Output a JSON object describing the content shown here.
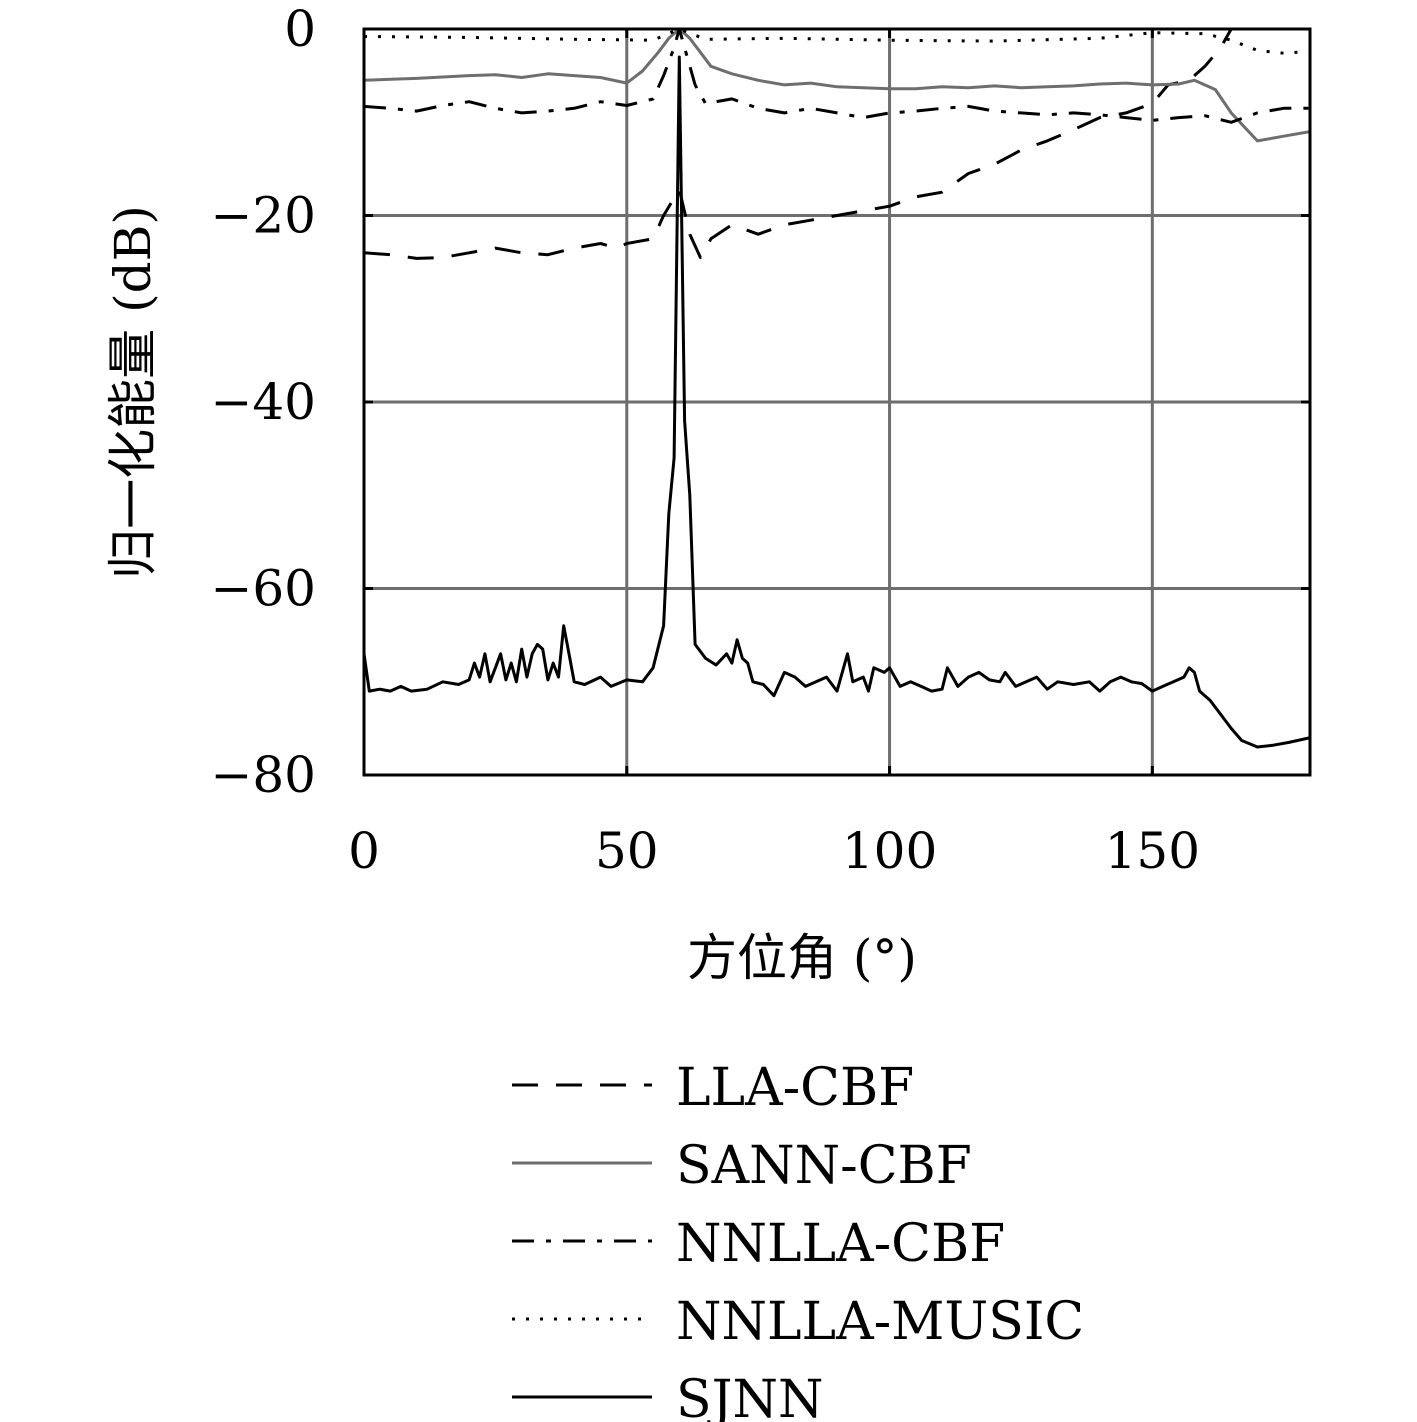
{
  "chart_data": {
    "type": "line",
    "title": "",
    "xlabel": "方位角 (°)",
    "ylabel": "归一化能量 (dB)",
    "xlim": [
      0,
      180
    ],
    "ylim": [
      -80,
      0
    ],
    "x_ticks": [
      "0",
      "50",
      "100",
      "150"
    ],
    "y_ticks": [
      "0",
      "−20",
      "−40",
      "−60",
      "−80"
    ],
    "grid": true,
    "legend_position": "below-plot",
    "series": [
      {
        "name": "LLA-CBF",
        "color": "#000000",
        "dash": "dashed",
        "points": [
          [
            0,
            -24
          ],
          [
            5,
            -24.2
          ],
          [
            10,
            -24.6
          ],
          [
            15,
            -24.5
          ],
          [
            20,
            -24
          ],
          [
            25,
            -23.5
          ],
          [
            30,
            -24
          ],
          [
            35,
            -24.2
          ],
          [
            40,
            -23.5
          ],
          [
            45,
            -23
          ],
          [
            48,
            -23.5
          ],
          [
            50,
            -23
          ],
          [
            55,
            -22.5
          ],
          [
            57,
            -20
          ],
          [
            60,
            -17.2
          ],
          [
            62,
            -22
          ],
          [
            64,
            -24.5
          ],
          [
            66,
            -22.5
          ],
          [
            70,
            -21
          ],
          [
            75,
            -22
          ],
          [
            80,
            -21
          ],
          [
            85,
            -20.5
          ],
          [
            90,
            -20
          ],
          [
            95,
            -19.5
          ],
          [
            100,
            -19
          ],
          [
            105,
            -18
          ],
          [
            110,
            -17.5
          ],
          [
            115,
            -15.5
          ],
          [
            120,
            -14.5
          ],
          [
            125,
            -13
          ],
          [
            130,
            -12
          ],
          [
            135,
            -10.8
          ],
          [
            140,
            -9.5
          ],
          [
            145,
            -9
          ],
          [
            150,
            -8
          ],
          [
            153,
            -6
          ],
          [
            157,
            -5.5
          ],
          [
            160,
            -4
          ],
          [
            163,
            -2
          ],
          [
            165,
            0
          ]
        ]
      },
      {
        "name": "SANN-CBF",
        "color": "#6e6e6e",
        "dash": "solid",
        "points": [
          [
            0,
            -5.5
          ],
          [
            10,
            -5.3
          ],
          [
            20,
            -5
          ],
          [
            25,
            -4.9
          ],
          [
            30,
            -5.2
          ],
          [
            35,
            -4.8
          ],
          [
            40,
            -5
          ],
          [
            45,
            -5.2
          ],
          [
            50,
            -5.8
          ],
          [
            53,
            -4.5
          ],
          [
            56,
            -2.5
          ],
          [
            58,
            -1
          ],
          [
            60,
            0
          ],
          [
            62,
            -1
          ],
          [
            64,
            -2.5
          ],
          [
            66,
            -4
          ],
          [
            70,
            -4.8
          ],
          [
            75,
            -5.5
          ],
          [
            80,
            -6
          ],
          [
            85,
            -5.8
          ],
          [
            90,
            -6.2
          ],
          [
            95,
            -6.3
          ],
          [
            100,
            -6.4
          ],
          [
            105,
            -6.4
          ],
          [
            110,
            -6.2
          ],
          [
            115,
            -6.3
          ],
          [
            120,
            -6.1
          ],
          [
            125,
            -6.3
          ],
          [
            130,
            -6.2
          ],
          [
            135,
            -6.1
          ],
          [
            140,
            -5.9
          ],
          [
            145,
            -5.8
          ],
          [
            150,
            -6
          ],
          [
            155,
            -5.9
          ],
          [
            158,
            -5.5
          ],
          [
            162,
            -6.5
          ],
          [
            165,
            -9
          ],
          [
            170,
            -12
          ],
          [
            175,
            -11.5
          ],
          [
            180,
            -11
          ]
        ]
      },
      {
        "name": "NNLLA-CBF",
        "color": "#000000",
        "dash": "dashdot",
        "points": [
          [
            0,
            -8.3
          ],
          [
            5,
            -8.5
          ],
          [
            10,
            -8.8
          ],
          [
            15,
            -8.2
          ],
          [
            20,
            -7.8
          ],
          [
            25,
            -8.5
          ],
          [
            30,
            -9
          ],
          [
            35,
            -8.8
          ],
          [
            40,
            -8.5
          ],
          [
            45,
            -7.8
          ],
          [
            50,
            -8.2
          ],
          [
            55,
            -7.5
          ],
          [
            57,
            -5
          ],
          [
            59,
            -2
          ],
          [
            60,
            0
          ],
          [
            61,
            -2
          ],
          [
            63,
            -6
          ],
          [
            65,
            -8
          ],
          [
            70,
            -7.5
          ],
          [
            75,
            -8.5
          ],
          [
            80,
            -9
          ],
          [
            85,
            -8.5
          ],
          [
            90,
            -9
          ],
          [
            95,
            -9.5
          ],
          [
            100,
            -9
          ],
          [
            105,
            -8.8
          ],
          [
            110,
            -8.5
          ],
          [
            115,
            -8.3
          ],
          [
            120,
            -8.8
          ],
          [
            125,
            -9
          ],
          [
            130,
            -9.2
          ],
          [
            135,
            -9
          ],
          [
            140,
            -9.2
          ],
          [
            145,
            -9.5
          ],
          [
            150,
            -9.8
          ],
          [
            155,
            -9.5
          ],
          [
            160,
            -9.3
          ],
          [
            165,
            -10
          ],
          [
            170,
            -9
          ],
          [
            175,
            -8.5
          ],
          [
            180,
            -8.5
          ]
        ]
      },
      {
        "name": "NNLLA-MUSIC",
        "color": "#000000",
        "dash": "dotted",
        "points": [
          [
            0,
            -0.8
          ],
          [
            20,
            -0.9
          ],
          [
            40,
            -1.1
          ],
          [
            55,
            -1.2
          ],
          [
            60,
            0
          ],
          [
            65,
            -1.1
          ],
          [
            80,
            -1
          ],
          [
            100,
            -1.2
          ],
          [
            120,
            -1.3
          ],
          [
            140,
            -1
          ],
          [
            150,
            -0.4
          ],
          [
            160,
            -0.5
          ],
          [
            165,
            -1.2
          ],
          [
            170,
            -2.3
          ],
          [
            175,
            -2.6
          ],
          [
            180,
            -2.4
          ]
        ]
      },
      {
        "name": "SJNN",
        "color": "#000000",
        "dash": "solid",
        "points": [
          [
            0,
            -67
          ],
          [
            1,
            -71
          ],
          [
            3,
            -70.8
          ],
          [
            5,
            -71
          ],
          [
            7,
            -70.5
          ],
          [
            9,
            -71
          ],
          [
            12,
            -70.8
          ],
          [
            15,
            -70
          ],
          [
            18,
            -70.3
          ],
          [
            20,
            -69.8
          ],
          [
            21,
            -68
          ],
          [
            22,
            -69.5
          ],
          [
            23,
            -67
          ],
          [
            24,
            -70
          ],
          [
            25,
            -68.5
          ],
          [
            26,
            -67
          ],
          [
            27,
            -69.8
          ],
          [
            28,
            -68
          ],
          [
            29,
            -70
          ],
          [
            30,
            -66.5
          ],
          [
            31,
            -69.5
          ],
          [
            32,
            -67
          ],
          [
            33,
            -66
          ],
          [
            34,
            -66.5
          ],
          [
            35,
            -69.8
          ],
          [
            36,
            -68
          ],
          [
            37,
            -69.5
          ],
          [
            38,
            -64
          ],
          [
            39,
            -67
          ],
          [
            40,
            -70
          ],
          [
            42,
            -70.3
          ],
          [
            45,
            -69.5
          ],
          [
            47,
            -70.5
          ],
          [
            50,
            -69.8
          ],
          [
            53,
            -70
          ],
          [
            55,
            -68.5
          ],
          [
            57,
            -64
          ],
          [
            58,
            -52
          ],
          [
            59,
            -46
          ],
          [
            60,
            -3
          ],
          [
            61,
            -42
          ],
          [
            62,
            -50
          ],
          [
            63,
            -66
          ],
          [
            65,
            -67.5
          ],
          [
            67,
            -68.2
          ],
          [
            69,
            -67
          ],
          [
            70,
            -68
          ],
          [
            71,
            -65.5
          ],
          [
            72,
            -67.5
          ],
          [
            73,
            -68
          ],
          [
            74,
            -70
          ],
          [
            76,
            -70.3
          ],
          [
            78,
            -71.5
          ],
          [
            80,
            -69
          ],
          [
            82,
            -69.5
          ],
          [
            84,
            -70.5
          ],
          [
            86,
            -70
          ],
          [
            88,
            -69.5
          ],
          [
            90,
            -71
          ],
          [
            92,
            -67
          ],
          [
            93,
            -70
          ],
          [
            95,
            -69.5
          ],
          [
            96,
            -71
          ],
          [
            97,
            -68.5
          ],
          [
            99,
            -69
          ],
          [
            100,
            -68.5
          ],
          [
            102,
            -70.5
          ],
          [
            104,
            -70
          ],
          [
            106,
            -70.5
          ],
          [
            108,
            -71
          ],
          [
            110,
            -70.8
          ],
          [
            111,
            -68.5
          ],
          [
            113,
            -70.5
          ],
          [
            115,
            -69.5
          ],
          [
            117,
            -69
          ],
          [
            119,
            -69.8
          ],
          [
            121,
            -70
          ],
          [
            122,
            -69
          ],
          [
            124,
            -70.5
          ],
          [
            126,
            -70
          ],
          [
            128,
            -69.5
          ],
          [
            130,
            -70.8
          ],
          [
            132,
            -70
          ],
          [
            135,
            -70.3
          ],
          [
            138,
            -70
          ],
          [
            140,
            -71
          ],
          [
            142,
            -70
          ],
          [
            144,
            -69.5
          ],
          [
            146,
            -70
          ],
          [
            148,
            -70.2
          ],
          [
            150,
            -71
          ],
          [
            152,
            -70.5
          ],
          [
            154,
            -70
          ],
          [
            156,
            -69.5
          ],
          [
            157,
            -68.5
          ],
          [
            158,
            -69
          ],
          [
            159,
            -71
          ],
          [
            161,
            -72
          ],
          [
            163,
            -73.5
          ],
          [
            165,
            -75
          ],
          [
            167,
            -76.3
          ],
          [
            170,
            -77
          ],
          [
            173,
            -76.8
          ],
          [
            176,
            -76.5
          ],
          [
            180,
            -76
          ]
        ]
      }
    ]
  }
}
